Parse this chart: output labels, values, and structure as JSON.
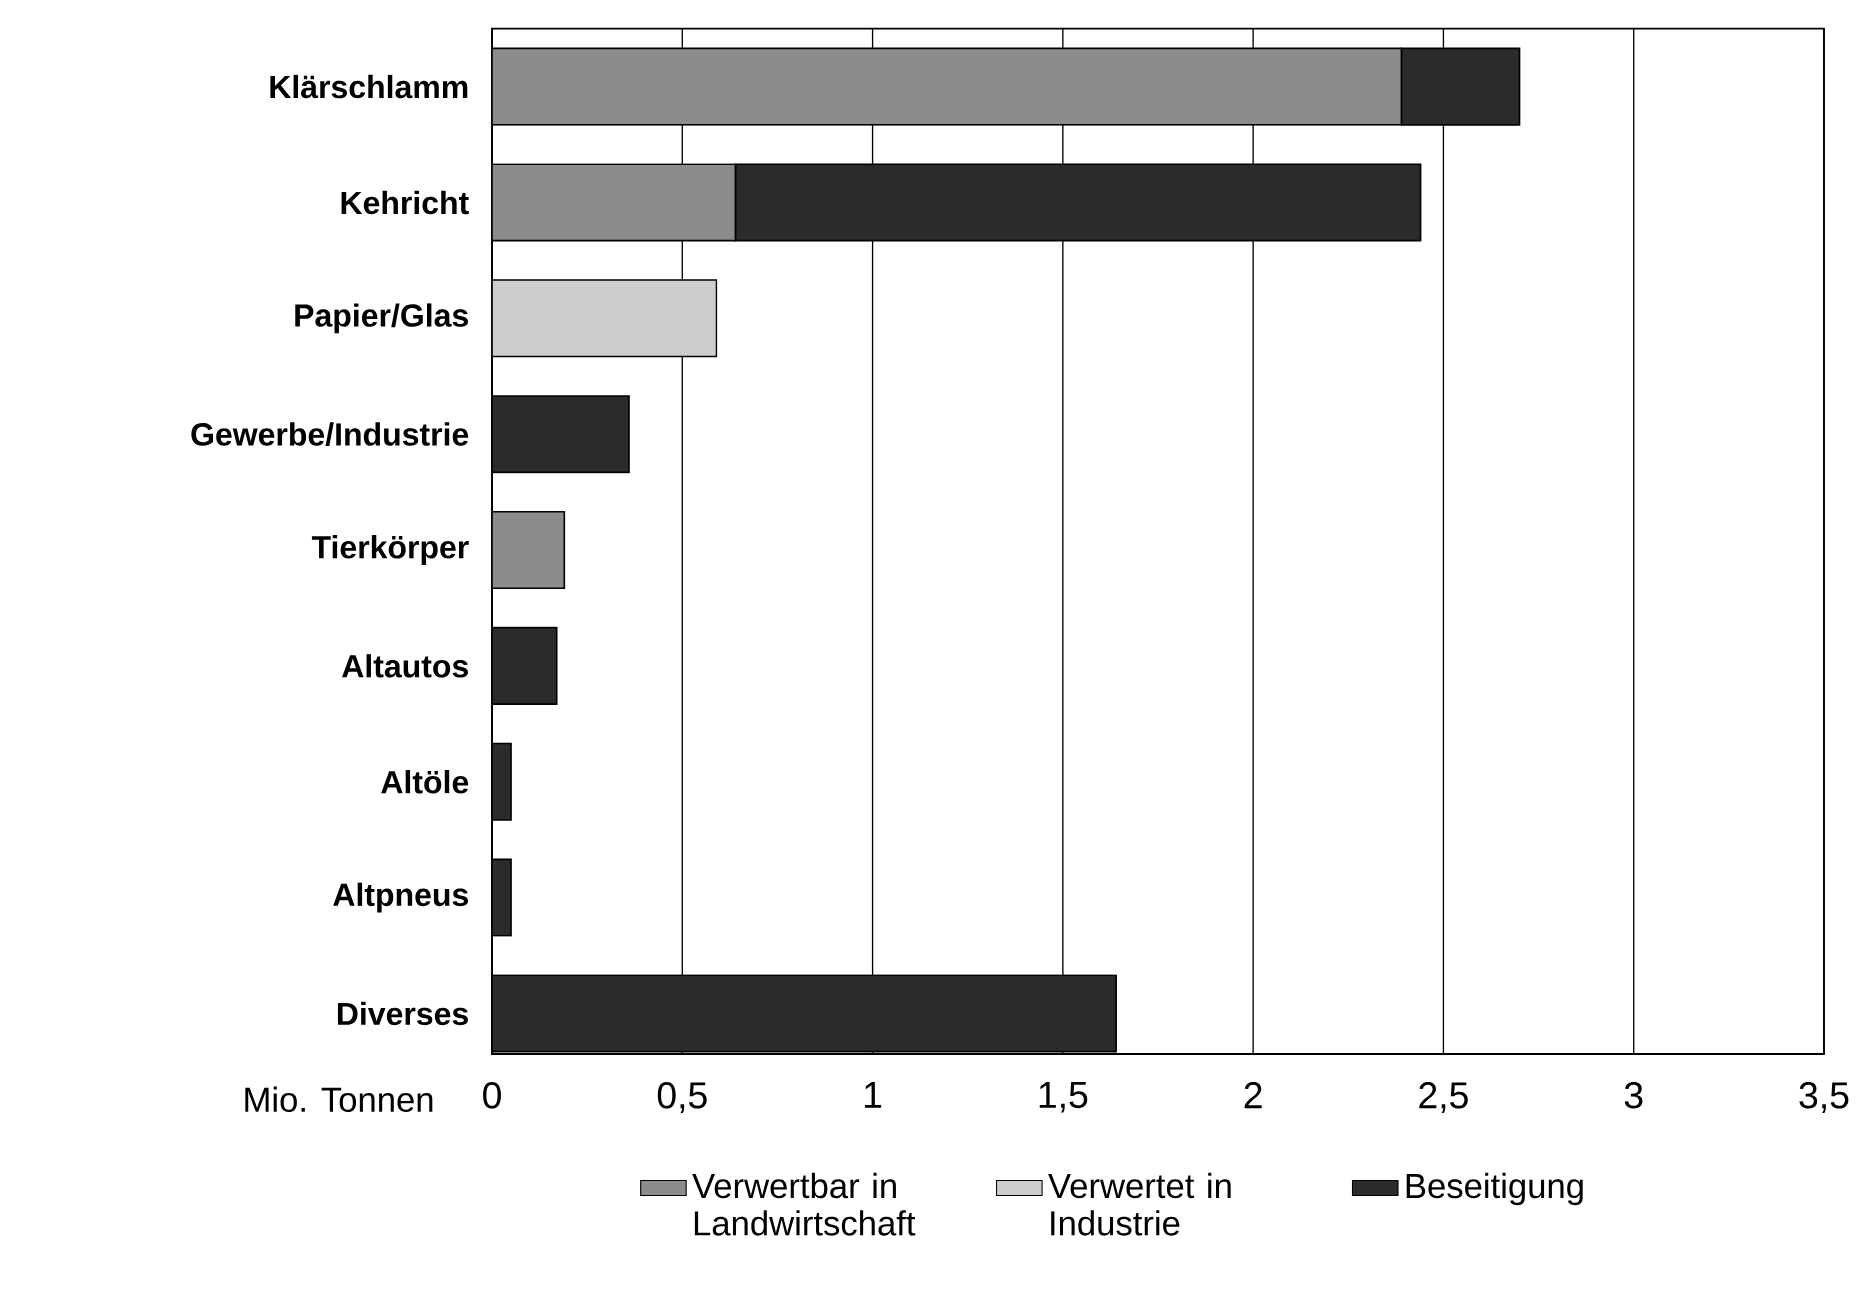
{
  "chart_data": {
    "type": "bar",
    "orientation": "horizontal",
    "stacked": true,
    "categories": [
      "Klärschlamm",
      "Kehricht",
      "Papier/Glas",
      "Gewerbe/Industrie",
      "Tierkörper",
      "Altautos",
      "Altöle",
      "Altpneus",
      "Diverses"
    ],
    "series": [
      {
        "name": "Verwertbar in Landwirtschaft",
        "color": "#8c8c8c",
        "values": [
          2.39,
          0.64,
          null,
          null,
          0.19,
          null,
          null,
          null,
          null
        ]
      },
      {
        "name": "Verwertet in Industrie",
        "color": "#cdcdcd",
        "values": [
          null,
          null,
          0.59,
          null,
          null,
          null,
          null,
          null,
          null
        ]
      },
      {
        "name": "Beseitigung",
        "color": "#2b2b2b",
        "values": [
          0.31,
          1.8,
          null,
          0.36,
          null,
          0.17,
          0.05,
          0.05,
          1.64
        ]
      }
    ],
    "xlabel": "Mio. Tonnen",
    "xlim": [
      0,
      3.5
    ],
    "xticks": [
      0,
      {
        "value": 0.5,
        "label": "0,5"
      },
      1,
      {
        "value": 1.5,
        "label": "1,5"
      },
      2,
      {
        "value": 2.5,
        "label": "2,5"
      },
      3,
      {
        "value": 3.5,
        "label": "3,5"
      }
    ],
    "grid": "x",
    "legend": "bottom"
  }
}
